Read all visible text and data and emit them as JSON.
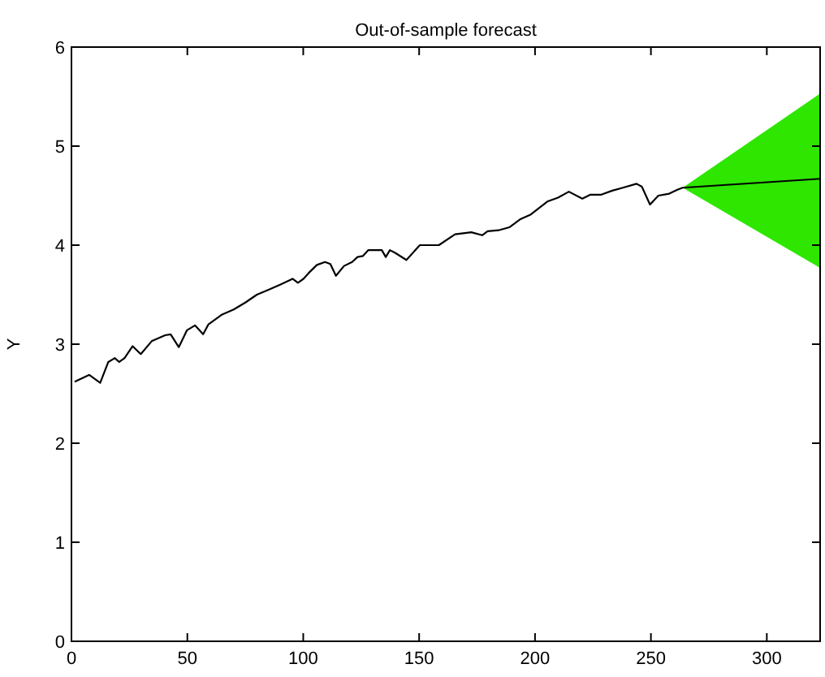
{
  "chart_data": {
    "type": "line",
    "title": "Out-of-sample forecast",
    "ylabel": "Y",
    "xlim": [
      0,
      323
    ],
    "ylim": [
      0,
      6
    ],
    "xticks": [
      0,
      50,
      100,
      150,
      200,
      250,
      300
    ],
    "yticks": [
      0,
      1,
      2,
      3,
      4,
      5,
      6
    ],
    "grid": false,
    "marker": "none",
    "line_style": "solid",
    "series": [
      {
        "color": "#000000",
        "x": [
          1.4,
          7.7,
          12.4,
          15.9,
          18.7,
          20.6,
          22.9,
          26.4,
          29.9,
          34.6,
          40.4,
          42.8,
          46.3,
          49.8,
          53.3,
          56.8,
          59.1,
          65,
          70,
          75,
          80,
          85,
          90,
          95.4,
          97.7,
          100.1,
          102.4,
          105.9,
          109.4,
          111.7,
          114.1,
          117.6,
          121.1,
          123.4,
          125.7,
          128.1,
          131.6,
          133.9,
          135.6,
          137.4,
          139.8,
          144.5,
          150.3,
          158.5,
          165.5,
          172.5,
          177.2,
          179.5,
          184.2,
          188.9,
          193.5,
          198.2,
          205.3,
          209.9,
          214.6,
          220.4,
          223.9,
          228.6,
          233.3,
          237.9,
          243.8,
          246.1,
          249.6,
          253.2,
          257.9,
          261.4,
          263.7,
          323
        ],
        "values": [
          2.62,
          2.69,
          2.61,
          2.82,
          2.86,
          2.82,
          2.86,
          2.98,
          2.9,
          3.03,
          3.09,
          3.1,
          2.97,
          3.14,
          3.19,
          3.1,
          3.2,
          3.3,
          3.35,
          3.42,
          3.5,
          3.55,
          3.6,
          3.66,
          3.62,
          3.66,
          3.72,
          3.8,
          3.83,
          3.81,
          3.69,
          3.79,
          3.83,
          3.88,
          3.89,
          3.95,
          3.95,
          3.95,
          3.88,
          3.95,
          3.92,
          3.85,
          4.0,
          4.0,
          4.11,
          4.13,
          4.1,
          4.14,
          4.15,
          4.18,
          4.26,
          4.31,
          4.44,
          4.48,
          4.54,
          4.47,
          4.51,
          4.51,
          4.55,
          4.58,
          4.62,
          4.59,
          4.41,
          4.5,
          4.52,
          4.56,
          4.58,
          4.67
        ],
        "lower": [
          null,
          null,
          null,
          null,
          null,
          null,
          null,
          null,
          null,
          null,
          null,
          null,
          null,
          null,
          null,
          null,
          null,
          null,
          null,
          null,
          null,
          null,
          null,
          null,
          null,
          null,
          null,
          null,
          null,
          null,
          null,
          null,
          null,
          null,
          null,
          null,
          null,
          null,
          null,
          null,
          null,
          null,
          null,
          null,
          null,
          null,
          null,
          null,
          null,
          null,
          null,
          null,
          null,
          null,
          null,
          null,
          null,
          null,
          null,
          null,
          null,
          null,
          null,
          null,
          null,
          null,
          4.58,
          3.77
        ],
        "upper": [
          null,
          null,
          null,
          null,
          null,
          null,
          null,
          null,
          null,
          null,
          null,
          null,
          null,
          null,
          null,
          null,
          null,
          null,
          null,
          null,
          null,
          null,
          null,
          null,
          null,
          null,
          null,
          null,
          null,
          null,
          null,
          null,
          null,
          null,
          null,
          null,
          null,
          null,
          null,
          null,
          null,
          null,
          null,
          null,
          null,
          null,
          null,
          null,
          null,
          null,
          null,
          null,
          null,
          null,
          null,
          null,
          null,
          null,
          null,
          null,
          null,
          null,
          null,
          null,
          null,
          null,
          4.58,
          5.53
        ]
      }
    ]
  }
}
